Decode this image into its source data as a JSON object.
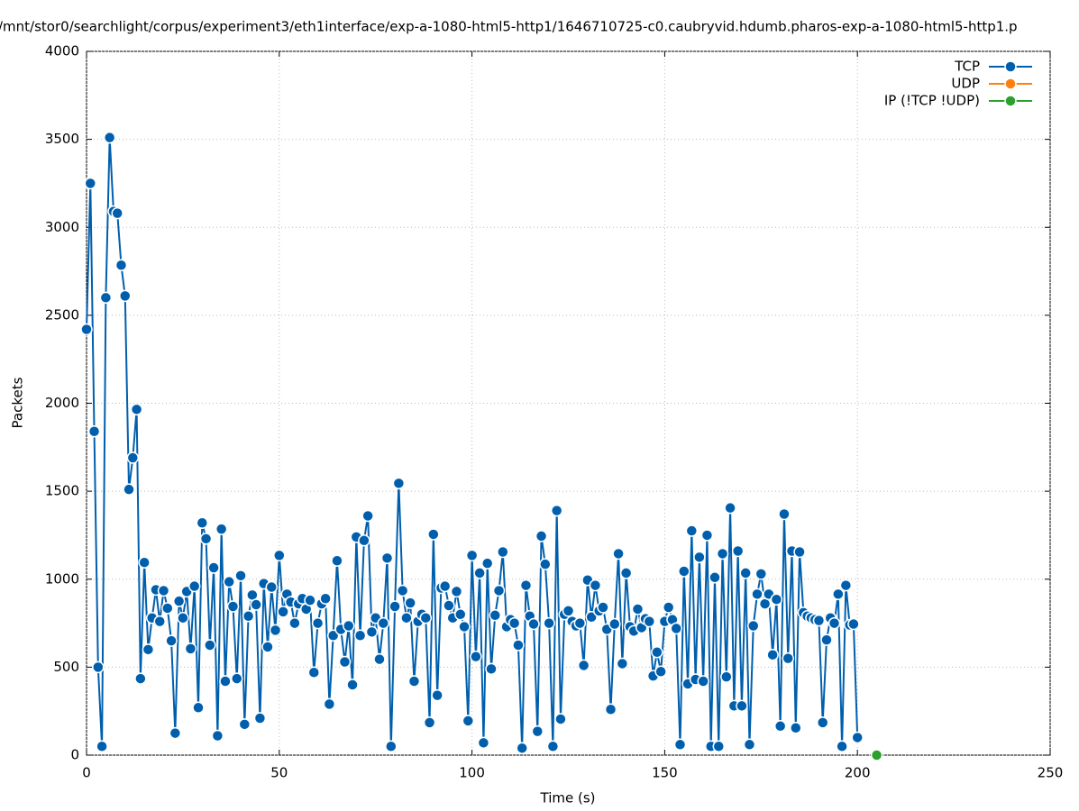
{
  "chart_data": {
    "type": "line",
    "title": "/mnt/stor0/searchlight/corpus/experiment3/eth1interface/exp-a-1080-html5-http1/1646710725-c0.caubryvid.hdumb.pharos-exp-a-1080-html5-http1.p",
    "xlabel": "Time (s)",
    "ylabel": "Packets",
    "xlim": [
      0,
      250
    ],
    "ylim": [
      0,
      4000
    ],
    "xticks": [
      0,
      50,
      100,
      150,
      200,
      250
    ],
    "yticks": [
      0,
      500,
      1000,
      1500,
      2000,
      2500,
      3000,
      3500,
      4000
    ],
    "grid": true,
    "legend": "top-right",
    "series": [
      {
        "name": "TCP",
        "color": "#005fad",
        "x": [
          0,
          1,
          2,
          3,
          4,
          5,
          6,
          7,
          8,
          9,
          10,
          11,
          12,
          13,
          14,
          15,
          16,
          17,
          18,
          19,
          20,
          21,
          22,
          23,
          24,
          25,
          26,
          27,
          28,
          29,
          30,
          31,
          32,
          33,
          34,
          35,
          36,
          37,
          38,
          39,
          40,
          41,
          42,
          43,
          44,
          45,
          46,
          47,
          48,
          49,
          50,
          51,
          52,
          53,
          54,
          55,
          56,
          57,
          58,
          59,
          60,
          61,
          62,
          63,
          64,
          65,
          66,
          67,
          68,
          69,
          70,
          71,
          72,
          73,
          74,
          75,
          76,
          77,
          78,
          79,
          80,
          81,
          82,
          83,
          84,
          85,
          86,
          87,
          88,
          89,
          90,
          91,
          92,
          93,
          94,
          95,
          96,
          97,
          98,
          99,
          100,
          101,
          102,
          103,
          104,
          105,
          106,
          107,
          108,
          109,
          110,
          111,
          112,
          113,
          114,
          115,
          116,
          117,
          118,
          119,
          120,
          121,
          122,
          123,
          124,
          125,
          126,
          127,
          128,
          129,
          130,
          131,
          132,
          133,
          134,
          135,
          136,
          137,
          138,
          139,
          140,
          141,
          142,
          143,
          144,
          145,
          146,
          147,
          148,
          149,
          150,
          151,
          152,
          153,
          154,
          155,
          156,
          157,
          158,
          159,
          160,
          161,
          162,
          163,
          164,
          165,
          166,
          167,
          168,
          169,
          170,
          171,
          172,
          173,
          174,
          175,
          176,
          177,
          178,
          179,
          180,
          181,
          182,
          183,
          184,
          185,
          186,
          187,
          188,
          189,
          190,
          191,
          192,
          193,
          194,
          195,
          196,
          197,
          198,
          199,
          200
        ],
        "values": [
          2420,
          3250,
          1840,
          500,
          50,
          2600,
          3510,
          3090,
          3080,
          2785,
          2610,
          1510,
          1690,
          1965,
          435,
          1095,
          600,
          780,
          940,
          760,
          935,
          835,
          650,
          125,
          875,
          780,
          930,
          605,
          960,
          270,
          1320,
          1230,
          625,
          1065,
          110,
          1285,
          420,
          985,
          845,
          435,
          1020,
          175,
          790,
          910,
          855,
          210,
          975,
          615,
          955,
          710,
          1135,
          815,
          915,
          870,
          750,
          860,
          890,
          830,
          880,
          470,
          750,
          860,
          890,
          290,
          680,
          1105,
          715,
          530,
          735,
          400,
          1240,
          680,
          1220,
          1360,
          700,
          780,
          545,
          750,
          1120,
          50,
          845,
          1545,
          935,
          780,
          865,
          420,
          760,
          800,
          780,
          185,
          1255,
          340,
          950,
          960,
          850,
          780,
          930,
          800,
          730,
          195,
          1135,
          560,
          1035,
          70,
          1090,
          490,
          795,
          935,
          1155,
          730,
          770,
          750,
          625,
          40,
          965,
          790,
          745,
          135,
          1245,
          1085,
          750,
          50,
          1390,
          205,
          800,
          820,
          760,
          735,
          750,
          510,
          995,
          785,
          965,
          820,
          840,
          715,
          260,
          745,
          1145,
          520,
          1035,
          730,
          705,
          830,
          725,
          775,
          760,
          450,
          585,
          475,
          760,
          840,
          770,
          720,
          60,
          1045,
          405,
          1275,
          430,
          1125,
          420,
          1250,
          50,
          1010,
          50,
          1145,
          445,
          1405,
          280,
          1160,
          280,
          1035,
          60,
          735,
          915,
          1030,
          860,
          915,
          570,
          885,
          165,
          1370,
          550,
          1160,
          155,
          1155,
          810,
          790,
          780,
          770,
          765,
          185,
          655,
          780,
          750,
          915,
          50,
          965,
          740,
          745,
          100
        ]
      },
      {
        "name": "UDP",
        "color": "#ff7f0e",
        "x": [],
        "values": []
      },
      {
        "name": "IP (!TCP  !UDP)",
        "color": "#2ca02c",
        "x": [
          205
        ],
        "values": [
          0
        ]
      }
    ]
  }
}
